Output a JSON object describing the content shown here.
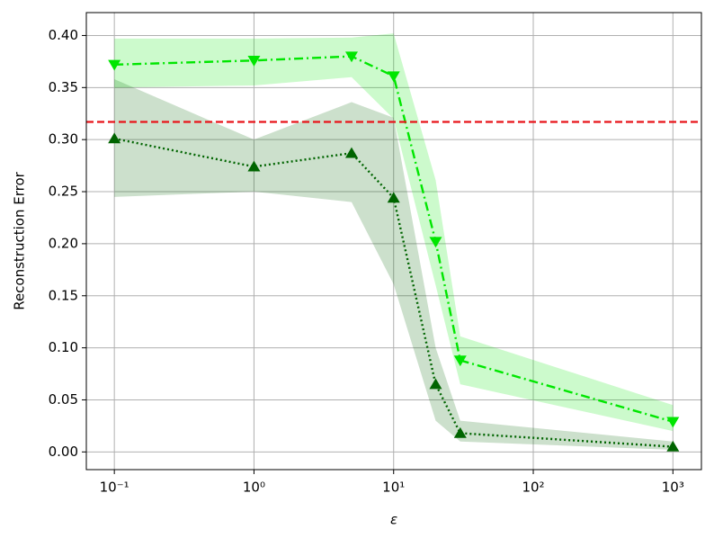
{
  "chart_data": {
    "type": "line",
    "xlabel": "ε",
    "ylabel": "Reconstruction Error",
    "x": [
      0.1,
      1,
      5,
      10,
      20,
      30,
      1000
    ],
    "xscale": "log",
    "xlim": [
      0.063,
      1600
    ],
    "xticks": [
      {
        "value": 0.1,
        "label": "10⁻¹"
      },
      {
        "value": 1,
        "label": "10⁰"
      },
      {
        "value": 10,
        "label": "10¹"
      },
      {
        "value": 100,
        "label": "10²"
      },
      {
        "value": 1000,
        "label": "10³"
      }
    ],
    "ylim": [
      -0.017,
      0.422
    ],
    "yticks": [
      {
        "value": 0,
        "label": "0.00"
      },
      {
        "value": 0.05,
        "label": "0.05"
      },
      {
        "value": 0.1,
        "label": "0.10"
      },
      {
        "value": 0.15,
        "label": "0.15"
      },
      {
        "value": 0.2,
        "label": "0.20"
      },
      {
        "value": 0.25,
        "label": "0.25"
      },
      {
        "value": 0.3,
        "label": "0.30"
      },
      {
        "value": 0.35,
        "label": "0.35"
      },
      {
        "value": 0.4,
        "label": "0.40"
      }
    ],
    "grid": true,
    "hline": {
      "value": 0.317,
      "color": "#e8141a"
    },
    "series": [
      {
        "color": "#00e600",
        "linestyle": "dashdot",
        "marker": "down",
        "values": [
          0.372,
          0.376,
          0.38,
          0.361,
          0.202,
          0.088,
          0.029
        ],
        "upper": [
          0.397,
          0.397,
          0.398,
          0.402,
          0.261,
          0.111,
          0.045
        ],
        "lower": [
          0.35,
          0.352,
          0.36,
          0.32,
          0.16,
          0.065,
          0.02
        ]
      },
      {
        "color": "#006400",
        "linestyle": "dotted",
        "marker": "up",
        "values": [
          0.301,
          0.274,
          0.287,
          0.244,
          0.065,
          0.018,
          0.005
        ],
        "upper": [
          0.358,
          0.3,
          0.336,
          0.321,
          0.1,
          0.03,
          0.01
        ],
        "lower": [
          0.245,
          0.25,
          0.24,
          0.161,
          0.03,
          0.01,
          0.002
        ]
      }
    ]
  }
}
